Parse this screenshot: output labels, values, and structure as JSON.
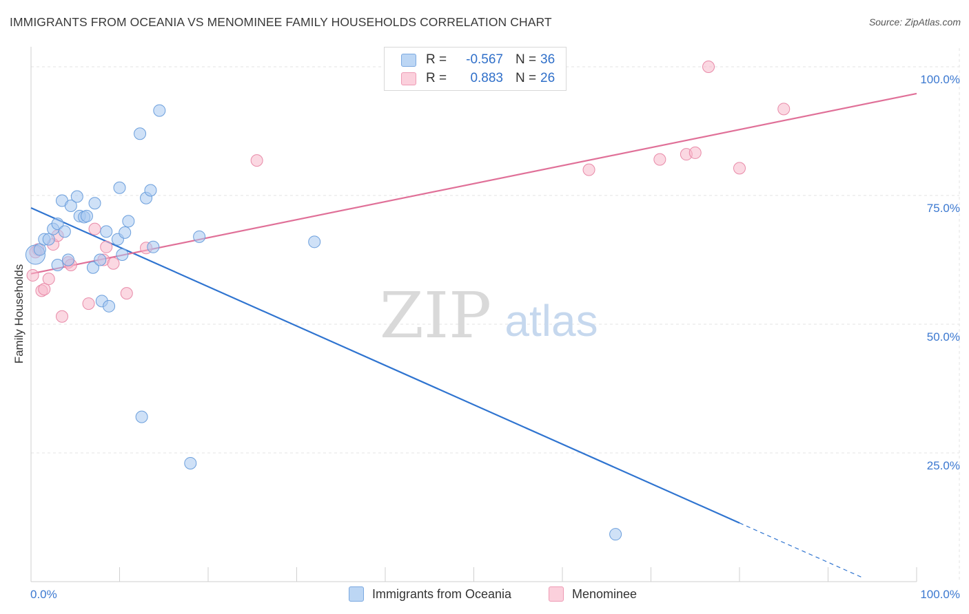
{
  "header": {
    "title": "IMMIGRANTS FROM OCEANIA VS MENOMINEE FAMILY HOUSEHOLDS CORRELATION CHART",
    "source": "Source: ZipAtlas.com"
  },
  "watermark": {
    "zip": "ZIP",
    "atlas": "atlas"
  },
  "legend": {
    "rows": [
      {
        "r_label": "R =",
        "r_value": "-0.567",
        "n_label": "N =",
        "n_value": "36",
        "color": "#a8c8f0"
      },
      {
        "r_label": "R =",
        "r_value": "0.883",
        "n_label": "N =",
        "n_value": "26",
        "color": "#f7b8cb"
      }
    ]
  },
  "bottom_legend": {
    "items": [
      {
        "label": "Immigrants from Oceania",
        "color": "#a8c8f0"
      },
      {
        "label": "Menominee",
        "color": "#f7b8cb"
      }
    ]
  },
  "colors": {
    "blue_line": "#2f74d0",
    "pink_line": "#e07098",
    "tick_text": "#3b78d0"
  },
  "chart_data": {
    "type": "scatter",
    "title": "IMMIGRANTS FROM OCEANIA VS MENOMINEE FAMILY HOUSEHOLDS CORRELATION CHART",
    "xlabel": "",
    "ylabel": "Family Households",
    "xlim": [
      0,
      100
    ],
    "ylim": [
      0,
      100
    ],
    "x_tick_labels": [
      "0.0%",
      "100.0%"
    ],
    "y_ticks": [
      {
        "value": 100,
        "label": "100.0%"
      },
      {
        "value": 75,
        "label": "75.0%"
      },
      {
        "value": 50,
        "label": "50.0%"
      },
      {
        "value": 25,
        "label": "25.0%"
      }
    ],
    "grid": true,
    "legend_position": "top-center",
    "series": [
      {
        "name": "Immigrants from Oceania",
        "color": "#a8c8f0",
        "stroke": "#6a9edc",
        "points": [
          [
            0.5,
            63.5
          ],
          [
            1,
            64.5
          ],
          [
            1.5,
            66.5
          ],
          [
            2,
            66.5
          ],
          [
            2.5,
            68.5
          ],
          [
            3,
            69.5
          ],
          [
            3,
            61.5
          ],
          [
            3.5,
            74
          ],
          [
            3.8,
            68
          ],
          [
            4.2,
            62.5
          ],
          [
            4.5,
            73
          ],
          [
            5.2,
            74.8
          ],
          [
            5.5,
            71
          ],
          [
            6,
            70.8
          ],
          [
            6.3,
            71
          ],
          [
            7,
            61
          ],
          [
            7.2,
            73.5
          ],
          [
            7.8,
            62.5
          ],
          [
            8,
            54.5
          ],
          [
            8.5,
            68
          ],
          [
            8.8,
            53.5
          ],
          [
            9.8,
            66.5
          ],
          [
            10,
            76.5
          ],
          [
            10.3,
            63.5
          ],
          [
            10.6,
            67.8
          ],
          [
            11,
            70
          ],
          [
            12.3,
            87
          ],
          [
            12.5,
            32
          ],
          [
            13,
            74.5
          ],
          [
            13.5,
            76
          ],
          [
            13.8,
            65
          ],
          [
            14.5,
            91.5
          ],
          [
            18,
            23
          ],
          [
            19,
            67
          ],
          [
            32,
            66
          ],
          [
            66,
            9.2
          ]
        ],
        "trendline": {
          "x": [
            0,
            80
          ],
          "y": [
            72.6,
            11.4
          ],
          "dashed_extension": {
            "x": [
              80,
              94
            ],
            "y": [
              11.4,
              0.7
            ]
          }
        }
      },
      {
        "name": "Menominee",
        "color": "#f7b8cb",
        "stroke": "#e88aa8",
        "points": [
          [
            0.2,
            59.5
          ],
          [
            0.8,
            64.5
          ],
          [
            1.2,
            56.5
          ],
          [
            1.5,
            56.8
          ],
          [
            2,
            58.8
          ],
          [
            2.5,
            65.5
          ],
          [
            3,
            67.2
          ],
          [
            3.5,
            51.5
          ],
          [
            4.2,
            62
          ],
          [
            4.5,
            61.5
          ],
          [
            6.5,
            54
          ],
          [
            7.2,
            68.5
          ],
          [
            8.2,
            62.5
          ],
          [
            8.5,
            65
          ],
          [
            9.3,
            61.8
          ],
          [
            10.8,
            56
          ],
          [
            13,
            64.8
          ],
          [
            25.5,
            81.8
          ],
          [
            63,
            80
          ],
          [
            71,
            82
          ],
          [
            74,
            83
          ],
          [
            75,
            83.3
          ],
          [
            76.5,
            100
          ],
          [
            80,
            80.3
          ],
          [
            85,
            91.8
          ],
          [
            0.5,
            64
          ]
        ],
        "trendline": {
          "x": [
            0,
            100
          ],
          "y": [
            59.8,
            94.8
          ]
        }
      }
    ]
  }
}
